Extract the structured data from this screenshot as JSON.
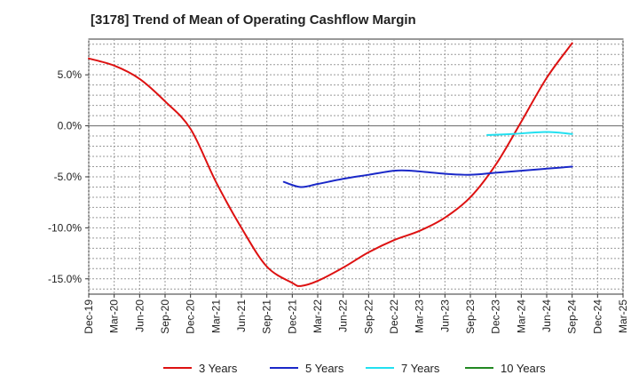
{
  "chart_data": {
    "type": "line",
    "title": "[3178]  Trend of Mean of Operating Cashflow Margin",
    "xlabel": "",
    "ylabel": "",
    "ylim": [
      -16.5,
      8.5
    ],
    "y_ticks": [
      5.0,
      0.0,
      -5.0,
      -10.0,
      -15.0
    ],
    "y_tick_labels": [
      "5.0%",
      "0.0%",
      "-5.0%",
      "-10.0%",
      "-15.0%"
    ],
    "x_ticks": [
      "Dec-19",
      "Mar-20",
      "Jun-20",
      "Sep-20",
      "Dec-20",
      "Mar-21",
      "Jun-21",
      "Sep-21",
      "Dec-21",
      "Mar-22",
      "Jun-22",
      "Sep-22",
      "Dec-22",
      "Mar-23",
      "Jun-23",
      "Sep-23",
      "Dec-23",
      "Mar-24",
      "Jun-24",
      "Sep-24",
      "Dec-24",
      "Mar-25"
    ],
    "grid": true,
    "legend_position": "bottom",
    "series": [
      {
        "name": "3 Years",
        "color": "#dd1111",
        "points": [
          [
            "Dec-19",
            6.6
          ],
          [
            "Mar-20",
            5.9
          ],
          [
            "Jun-20",
            4.6
          ],
          [
            "Sep-20",
            2.4
          ],
          [
            "Dec-20",
            -0.3
          ],
          [
            "Mar-21",
            -5.5
          ],
          [
            "Jun-21",
            -10.0
          ],
          [
            "Sep-21",
            -13.8
          ],
          [
            "Dec-21",
            -15.4
          ],
          [
            "Jan-22",
            -15.7
          ],
          [
            "Mar-22",
            -15.2
          ],
          [
            "Jun-22",
            -13.9
          ],
          [
            "Sep-22",
            -12.4
          ],
          [
            "Dec-22",
            -11.2
          ],
          [
            "Mar-23",
            -10.3
          ],
          [
            "Jun-23",
            -9.0
          ],
          [
            "Sep-23",
            -7.0
          ],
          [
            "Dec-23",
            -3.8
          ],
          [
            "Mar-24",
            0.4
          ],
          [
            "Jun-24",
            4.7
          ],
          [
            "Sep-24",
            8.1
          ]
        ]
      },
      {
        "name": "5 Years",
        "color": "#1a28c8",
        "points": [
          [
            "Nov-21",
            -5.5
          ],
          [
            "Jan-22",
            -6.0
          ],
          [
            "Mar-22",
            -5.7
          ],
          [
            "Jun-22",
            -5.2
          ],
          [
            "Sep-22",
            -4.8
          ],
          [
            "Dec-22",
            -4.4
          ],
          [
            "Feb-23",
            -4.4
          ],
          [
            "Jun-23",
            -4.7
          ],
          [
            "Sep-23",
            -4.8
          ],
          [
            "Dec-23",
            -4.6
          ],
          [
            "Mar-24",
            -4.4
          ],
          [
            "Jun-24",
            -4.2
          ],
          [
            "Sep-24",
            -4.0
          ]
        ]
      },
      {
        "name": "7 Years",
        "color": "#22e0f0",
        "points": [
          [
            "Nov-23",
            -0.9
          ],
          [
            "Feb-24",
            -0.8
          ],
          [
            "Jun-24",
            -0.6
          ],
          [
            "Sep-24",
            -0.8
          ]
        ]
      },
      {
        "name": "10 Years",
        "color": "#228822",
        "points": []
      }
    ]
  }
}
